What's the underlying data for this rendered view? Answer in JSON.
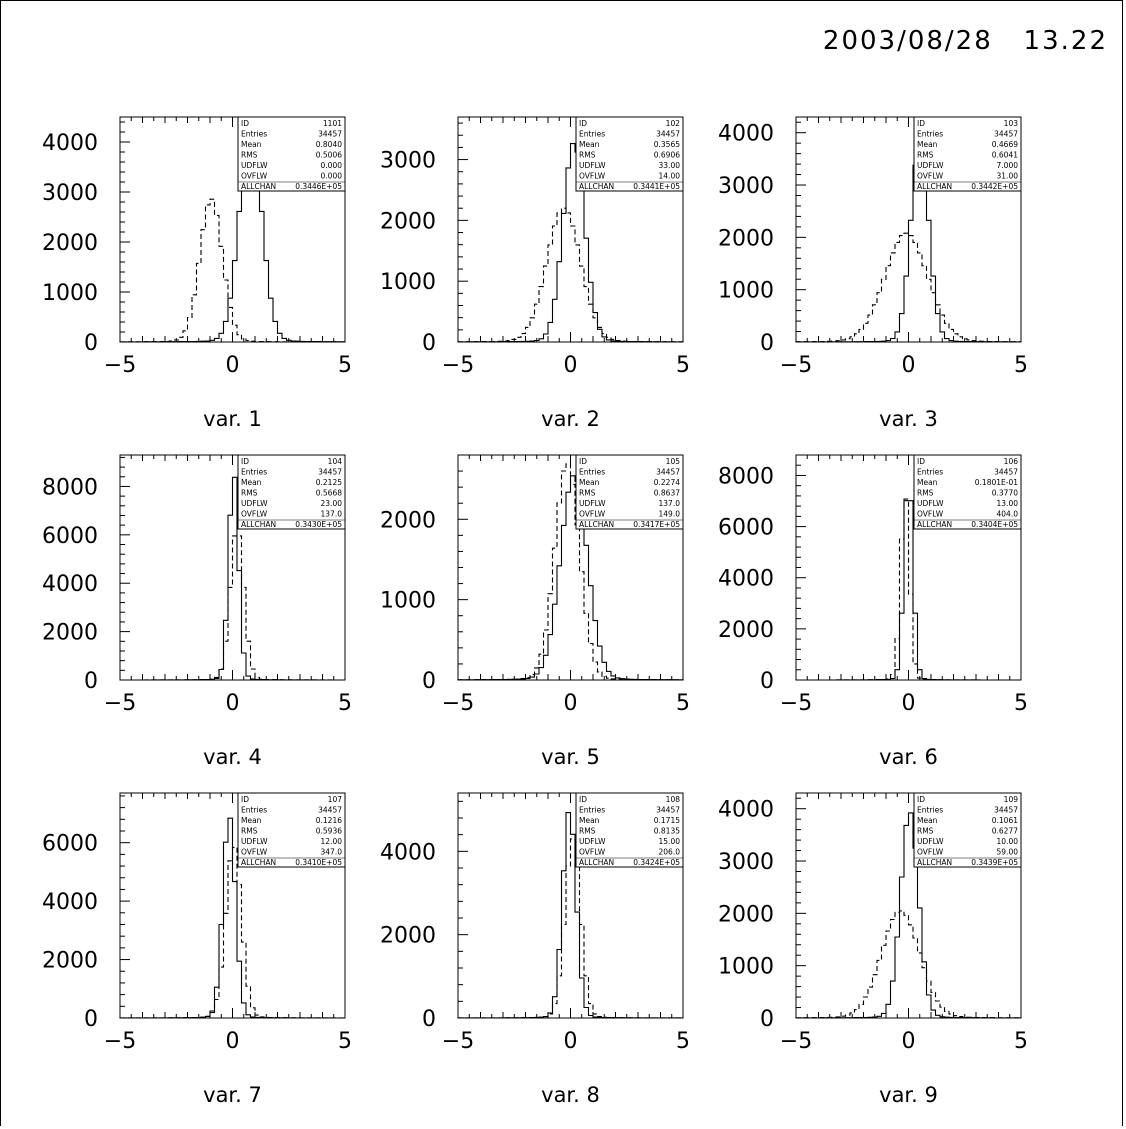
{
  "datestamp": "2003/08/28   13.22",
  "chart_data": [
    {
      "type": "histogram",
      "id": "1101",
      "xlabel": "var. 1",
      "xlim": [
        -5,
        5
      ],
      "ylim": [
        0,
        4500
      ],
      "yticks": [
        0,
        1000,
        2000,
        3000,
        4000
      ],
      "xticks": [
        -5,
        0,
        5
      ],
      "stats": {
        "ID": "1101",
        "Entries": "34457",
        "Mean": "0.8040",
        "RMS": "0.5006",
        "UDFLW": "0.000",
        "OVFLW": "0.000",
        "ALLCHAN": "0.3446E+05"
      },
      "series": [
        {
          "style": "solid",
          "mean": 0.8,
          "sigma": 0.5,
          "peak": 4300
        },
        {
          "style": "dashed",
          "mean": -0.95,
          "sigma": 0.5,
          "peak": 2870
        }
      ]
    },
    {
      "type": "histogram",
      "id": "102",
      "xlabel": "var. 2",
      "xlim": [
        -5,
        5
      ],
      "ylim": [
        0,
        3700
      ],
      "yticks": [
        0,
        1000,
        2000,
        3000
      ],
      "xticks": [
        -5,
        0,
        5
      ],
      "stats": {
        "ID": "102",
        "Entries": "34457",
        "Mean": "0.3565",
        "RMS": "0.6906",
        "UDFLW": "33.00",
        "OVFLW": "14.00",
        "ALLCHAN": "0.3441E+05"
      },
      "series": [
        {
          "style": "solid",
          "mean": 0.15,
          "sigma": 0.48,
          "peak": 3280
        },
        {
          "style": "dashed",
          "mean": -0.3,
          "sigma": 0.75,
          "peak": 2200
        }
      ]
    },
    {
      "type": "histogram",
      "id": "103",
      "xlabel": "var. 3",
      "xlim": [
        -5,
        5
      ],
      "ylim": [
        0,
        4300
      ],
      "yticks": [
        0,
        1000,
        2000,
        3000,
        4000
      ],
      "xticks": [
        -5,
        0,
        5
      ],
      "stats": {
        "ID": "103",
        "Entries": "34457",
        "Mean": "0.4669",
        "RMS": "0.6041",
        "UDFLW": "7.000",
        "OVFLW": "31.00",
        "ALLCHAN": "0.3442E+05"
      },
      "series": [
        {
          "style": "solid",
          "mean": 0.5,
          "sigma": 0.4,
          "peak": 3830
        },
        {
          "style": "dashed",
          "mean": -0.1,
          "sigma": 0.95,
          "peak": 2080
        }
      ]
    },
    {
      "type": "histogram",
      "id": "104",
      "xlabel": "var. 4",
      "xlim": [
        -5,
        5
      ],
      "ylim": [
        0,
        9300
      ],
      "yticks": [
        0,
        2000,
        4000,
        6000,
        8000
      ],
      "xticks": [
        -5,
        0,
        5
      ],
      "stats": {
        "ID": "104",
        "Entries": "34457",
        "Mean": "0.2125",
        "RMS": "0.5668",
        "UDFLW": "23.00",
        "OVFLW": "137.0",
        "ALLCHAN": "0.3430E+05"
      },
      "series": [
        {
          "style": "solid",
          "mean": 0.05,
          "sigma": 0.22,
          "peak": 8600
        },
        {
          "style": "dashed",
          "mean": 0.2,
          "sigma": 0.3,
          "peak": 6300
        }
      ]
    },
    {
      "type": "histogram",
      "id": "105",
      "xlabel": "var. 5",
      "xlim": [
        -5,
        5
      ],
      "ylim": [
        0,
        2800
      ],
      "yticks": [
        0,
        1000,
        2000
      ],
      "xticks": [
        -5,
        0,
        5
      ],
      "stats": {
        "ID": "105",
        "Entries": "34457",
        "Mean": "0.2274",
        "RMS": "0.8637",
        "UDFLW": "137.0",
        "OVFLW": "149.0",
        "ALLCHAN": "0.3417E+05"
      },
      "series": [
        {
          "style": "solid",
          "mean": 0.15,
          "sigma": 0.6,
          "peak": 2550
        },
        {
          "style": "dashed",
          "mean": -0.15,
          "sigma": 0.55,
          "peak": 2700
        }
      ]
    },
    {
      "type": "histogram",
      "id": "106",
      "xlabel": "var. 6",
      "xlim": [
        -5,
        5
      ],
      "ylim": [
        0,
        8800
      ],
      "yticks": [
        0,
        2000,
        4000,
        6000,
        8000
      ],
      "xticks": [
        -5,
        0,
        5
      ],
      "stats": {
        "ID": "106",
        "Entries": "34457",
        "Mean": "0.1801E-01",
        "RMS": "0.3770",
        "UDFLW": "13.00",
        "OVFLW": "404.0",
        "ALLCHAN": "0.3404E+05"
      },
      "series": [
        {
          "style": "solid",
          "mean": 0.0,
          "sigma": 0.2,
          "peak": 7950
        },
        {
          "style": "dashed",
          "mean": -0.15,
          "sigma": 0.2,
          "peak": 7300
        }
      ]
    },
    {
      "type": "histogram",
      "id": "107",
      "xlabel": "var. 7",
      "xlim": [
        -5,
        5
      ],
      "ylim": [
        0,
        7700
      ],
      "yticks": [
        0,
        2000,
        4000,
        6000
      ],
      "xticks": [
        -5,
        0,
        5
      ],
      "stats": {
        "ID": "107",
        "Entries": "34457",
        "Mean": "0.1216",
        "RMS": "0.5936",
        "UDFLW": "12.00",
        "OVFLW": "347.0",
        "ALLCHAN": "0.3410E+05"
      },
      "series": [
        {
          "style": "solid",
          "mean": -0.15,
          "sigma": 0.28,
          "peak": 6950
        },
        {
          "style": "dashed",
          "mean": 0.05,
          "sigma": 0.35,
          "peak": 5900
        }
      ]
    },
    {
      "type": "histogram",
      "id": "108",
      "xlabel": "var. 8",
      "xlim": [
        -5,
        5
      ],
      "ylim": [
        0,
        5400
      ],
      "yticks": [
        0,
        2000,
        4000
      ],
      "xticks": [
        -5,
        0,
        5
      ],
      "stats": {
        "ID": "108",
        "Entries": "34457",
        "Mean": "0.1715",
        "RMS": "0.8135",
        "UDFLW": "15.00",
        "OVFLW": "206.0",
        "ALLCHAN": "0.3424E+05"
      },
      "series": [
        {
          "style": "solid",
          "mean": -0.05,
          "sigma": 0.3,
          "peak": 5000
        },
        {
          "style": "dashed",
          "mean": 0.1,
          "sigma": 0.35,
          "peak": 4300
        }
      ]
    },
    {
      "type": "histogram",
      "id": "109",
      "xlabel": "var. 9",
      "xlim": [
        -5,
        5
      ],
      "ylim": [
        0,
        4300
      ],
      "yticks": [
        0,
        1000,
        2000,
        3000,
        4000
      ],
      "xticks": [
        -5,
        0,
        5
      ],
      "stats": {
        "ID": "109",
        "Entries": "34457",
        "Mean": "0.1061",
        "RMS": "0.6277",
        "UDFLW": "10.00",
        "OVFLW": "59.00",
        "ALLCHAN": "0.3439E+05"
      },
      "series": [
        {
          "style": "solid",
          "mean": 0.05,
          "sigma": 0.4,
          "peak": 3950
        },
        {
          "style": "dashed",
          "mean": -0.35,
          "sigma": 0.85,
          "peak": 2050
        }
      ]
    }
  ]
}
